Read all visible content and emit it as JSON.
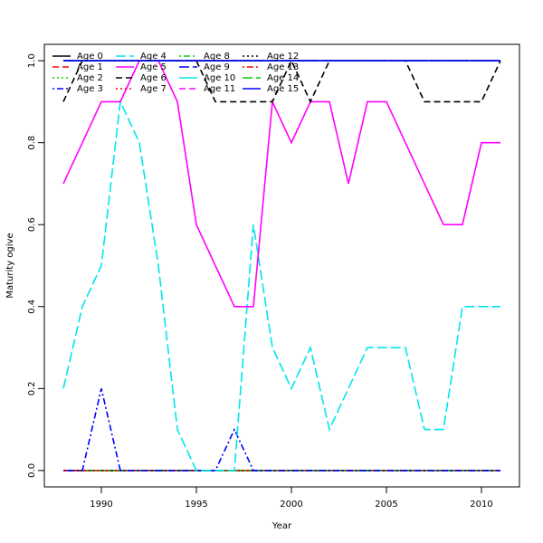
{
  "chart_data": {
    "type": "line",
    "title": "",
    "xlabel": "Year",
    "ylabel": "Maturity ogive",
    "xlim": [
      1987.0,
      2012.0
    ],
    "ylim": [
      -0.04,
      1.04
    ],
    "x_ticks": [
      1990,
      1995,
      2000,
      2005,
      2010
    ],
    "y_ticks": [
      0.0,
      0.2,
      0.4,
      0.6,
      0.8,
      1.0
    ],
    "grid": false,
    "legend_position": "top-left",
    "legend_columns": 4,
    "x": [
      1988,
      1989,
      1990,
      1991,
      1992,
      1993,
      1994,
      1995,
      1996,
      1997,
      1998,
      1999,
      2000,
      2001,
      2002,
      2003,
      2004,
      2005,
      2006,
      2007,
      2008,
      2009,
      2010,
      2011
    ],
    "series": [
      {
        "name": "Age 0",
        "color": "#000000",
        "dash": "solid",
        "values": [
          0,
          0,
          0,
          0,
          0,
          0,
          0,
          0,
          0,
          0,
          0,
          0,
          0,
          0,
          0,
          0,
          0,
          0,
          0,
          0,
          0,
          0,
          0,
          0
        ]
      },
      {
        "name": "Age 1",
        "color": "#ff0000",
        "dash": "dashed",
        "values": [
          0,
          0,
          0,
          0,
          0,
          0,
          0,
          0,
          0,
          0,
          0,
          0,
          0,
          0,
          0,
          0,
          0,
          0,
          0,
          0,
          0,
          0,
          0,
          0
        ]
      },
      {
        "name": "Age 2",
        "color": "#00cd00",
        "dash": "dotted",
        "values": [
          0,
          0,
          0,
          0,
          0,
          0,
          0,
          0,
          0,
          0,
          0,
          0,
          0,
          0,
          0,
          0,
          0,
          0,
          0,
          0,
          0,
          0,
          0,
          0
        ]
      },
      {
        "name": "Age 3",
        "color": "#0000ff",
        "dash": "dotdash",
        "values": [
          0,
          0,
          0.2,
          0,
          0,
          0,
          0,
          0,
          0,
          0.1,
          0,
          0,
          0,
          0,
          0,
          0,
          0,
          0,
          0,
          0,
          0,
          0,
          0,
          0
        ]
      },
      {
        "name": "Age 4",
        "color": "#00e5ee",
        "dash": "longdash",
        "values": [
          0.2,
          0.4,
          0.5,
          0.9,
          0.8,
          0.5,
          0.1,
          0,
          0,
          0,
          0.6,
          0.3,
          0.2,
          0.3,
          0.1,
          0.2,
          0.3,
          0.3,
          0.3,
          0.1,
          0.1,
          0.4,
          0.4,
          0.4
        ]
      },
      {
        "name": "Age 5",
        "color": "#ff00ff",
        "dash": "solid",
        "values": [
          0.7,
          0.8,
          0.9,
          0.9,
          1.0,
          1.0,
          0.9,
          0.6,
          0.5,
          0.4,
          0.4,
          0.9,
          0.8,
          0.9,
          0.9,
          0.7,
          0.9,
          0.9,
          0.8,
          0.7,
          0.6,
          0.6,
          0.8,
          0.8
        ]
      },
      {
        "name": "Age 6",
        "color": "#000000",
        "dash": "dashed",
        "values": [
          0.9,
          1.0,
          1.0,
          1.0,
          1.0,
          1.0,
          1.0,
          1.0,
          0.9,
          0.9,
          0.9,
          0.9,
          1.0,
          0.9,
          1.0,
          1.0,
          1.0,
          1.0,
          1.0,
          0.9,
          0.9,
          0.9,
          0.9,
          1.0
        ]
      },
      {
        "name": "Age 7",
        "color": "#ff0000",
        "dash": "dotted",
        "values": [
          1,
          1,
          1,
          1,
          1,
          1,
          1,
          1,
          1,
          1,
          1,
          1,
          1,
          1,
          1,
          1,
          1,
          1,
          1,
          1,
          1,
          1,
          1,
          1
        ]
      },
      {
        "name": "Age 8",
        "color": "#00cd00",
        "dash": "dotdash",
        "values": [
          1,
          1,
          1,
          1,
          1,
          1,
          1,
          1,
          1,
          1,
          1,
          1,
          1,
          1,
          1,
          1,
          1,
          1,
          1,
          1,
          1,
          1,
          1,
          1
        ]
      },
      {
        "name": "Age 9",
        "color": "#0000ff",
        "dash": "longdash",
        "values": [
          1,
          1,
          1,
          1,
          1,
          1,
          1,
          1,
          1,
          1,
          1,
          1,
          1,
          1,
          1,
          1,
          1,
          1,
          1,
          1,
          1,
          1,
          1,
          1
        ]
      },
      {
        "name": "Age 10",
        "color": "#00e5ee",
        "dash": "solid",
        "values": [
          1,
          1,
          1,
          1,
          1,
          1,
          1,
          1,
          1,
          1,
          1,
          1,
          1,
          1,
          1,
          1,
          1,
          1,
          1,
          1,
          1,
          1,
          1,
          1
        ]
      },
      {
        "name": "Age 11",
        "color": "#ff00ff",
        "dash": "dashed",
        "values": [
          1,
          1,
          1,
          1,
          1,
          1,
          1,
          1,
          1,
          1,
          1,
          1,
          1,
          1,
          1,
          1,
          1,
          1,
          1,
          1,
          1,
          1,
          1,
          1
        ]
      },
      {
        "name": "Age 12",
        "color": "#000000",
        "dash": "dotted",
        "values": [
          1,
          1,
          1,
          1,
          1,
          1,
          1,
          1,
          1,
          1,
          1,
          1,
          1,
          1,
          1,
          1,
          1,
          1,
          1,
          1,
          1,
          1,
          1,
          1
        ]
      },
      {
        "name": "Age 13",
        "color": "#ff0000",
        "dash": "dotdash",
        "values": [
          1,
          1,
          1,
          1,
          1,
          1,
          1,
          1,
          1,
          1,
          1,
          1,
          1,
          1,
          1,
          1,
          1,
          1,
          1,
          1,
          1,
          1,
          1,
          1
        ]
      },
      {
        "name": "Age 14",
        "color": "#00cd00",
        "dash": "longdash",
        "values": [
          1,
          1,
          1,
          1,
          1,
          1,
          1,
          1,
          1,
          1,
          1,
          1,
          1,
          1,
          1,
          1,
          1,
          1,
          1,
          1,
          1,
          1,
          1,
          1
        ]
      },
      {
        "name": "Age 15",
        "color": "#0000ff",
        "dash": "solid",
        "values": [
          1,
          1,
          1,
          1,
          1,
          1,
          1,
          1,
          1,
          1,
          1,
          1,
          1,
          1,
          1,
          1,
          1,
          1,
          1,
          1,
          1,
          1,
          1,
          1
        ]
      }
    ]
  }
}
